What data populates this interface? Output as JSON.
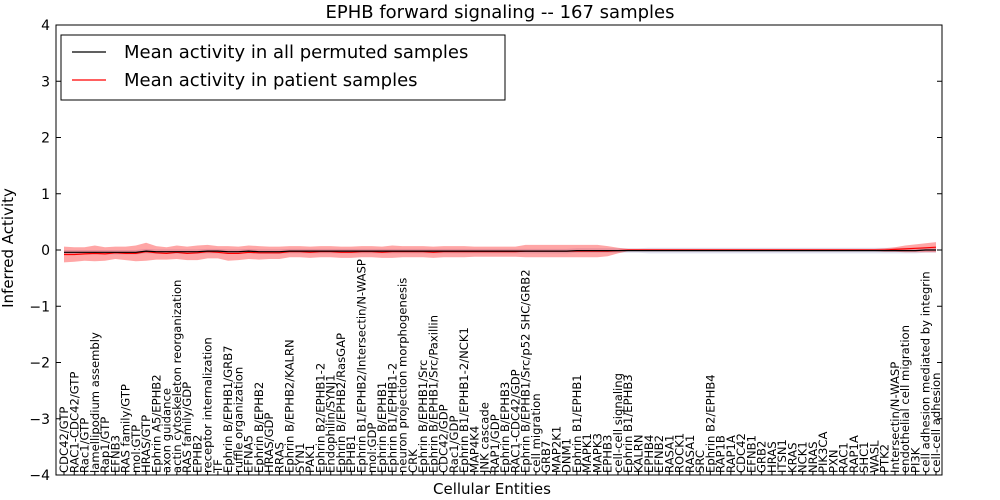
{
  "chart_data": {
    "type": "line",
    "title": "EPHB forward signaling -- 167 samples",
    "xlabel": "Cellular Entities",
    "ylabel": "Inferred Activity",
    "ylim": [
      -4,
      4
    ],
    "yticks": [
      -4,
      -3,
      -2,
      -1,
      0,
      1,
      2,
      3,
      4
    ],
    "grid": false,
    "legend_position": "top-left",
    "categories": [
      "CDC42/GTP",
      "RAC1-CDC42/GTP",
      "Rac1/GTP",
      "lamellipodium assembly",
      "Rap1/GTP",
      "EFNB3",
      "RAS family/GTP",
      "mol:GTP",
      "HRAS/GTP",
      "Ephrin A5/EPHB2",
      "axon guidance",
      "actin cytoskeleton reorganization",
      "RAS family/GDP",
      "EPHB2",
      "receptor internalization",
      "TF",
      "Ephrin B/EPHB1/GRB7",
      "ruffle organization",
      "EFNA5",
      "Ephrin B/EPHB2",
      "HRAS/GDP",
      "RRAS",
      "Ephrin B/EPHB2/KALRN",
      "SYN1",
      "PAK1",
      "Ephrin B2/EPHB1-2",
      "Endophilin/SYNJ1",
      "Ephrin B/EPHB2/RasGAP",
      "EPHB1",
      "Ephrin B1/EPHB2/Intersectin/N-WASP",
      "mol:GDP",
      "Ephrin B/EPHB1",
      "Ephrin B1/EPHB1-2",
      "neuron projection morphogenesis",
      "CRK",
      "Ephrin B/EPHB1/Src",
      "Ephrin B/EPHB1/Src/Paxillin",
      "CDC42/GDP",
      "Rac1/GDP",
      "Ephrin B1/EPHB1-2/NCK1",
      "MAP4K4",
      "JNK cascade",
      "RAP1/GDP",
      "Ephrin B/EPHB3",
      "RAC1-CDC42/GDP",
      "Ephrin B/EPHB1/Src/p52 SHC/GRB2",
      "cell migration",
      "GRB7",
      "MAP2K1",
      "DNM1",
      "Ephrin B1/EPHB1",
      "MAPK1",
      "MAPK3",
      "EPHB3",
      "cell-cell signaling",
      "Ephrin B1/EPHB3",
      "KALRN",
      "EPHB4",
      "EFNB2",
      "RASA1",
      "ROCK1",
      "RASA1",
      "SRC",
      "Ephrin B2/EPHB4",
      "RAP1B",
      "RAP1A",
      "CDC42",
      "EFNB1",
      "GRB2",
      "HRAS",
      "ITSN1",
      "KRAS",
      "NCK1",
      "NRAS",
      "PIK3CA",
      "PXN",
      "RAC1",
      "RAP1A",
      "SHC1",
      "WASL",
      "PTK2",
      "Intersectin/N-WASP",
      "endothelial cell migration",
      "PI3K",
      "cell adhesion mediated by integrin",
      "cell-cell adhesion"
    ],
    "series": [
      {
        "name": "Mean activity in all permuted samples",
        "color": "#000000",
        "values": [
          -0.04,
          -0.04,
          -0.04,
          -0.04,
          -0.04,
          -0.04,
          -0.04,
          -0.04,
          -0.02,
          -0.03,
          -0.03,
          -0.03,
          -0.03,
          -0.03,
          -0.02,
          -0.02,
          -0.03,
          -0.03,
          -0.02,
          -0.03,
          -0.03,
          -0.03,
          -0.02,
          -0.02,
          -0.02,
          -0.02,
          -0.02,
          -0.02,
          -0.02,
          -0.02,
          -0.02,
          -0.02,
          -0.02,
          -0.02,
          -0.02,
          -0.02,
          -0.02,
          -0.02,
          -0.02,
          -0.02,
          -0.02,
          -0.02,
          -0.02,
          -0.02,
          -0.02,
          -0.02,
          -0.02,
          -0.02,
          -0.02,
          -0.02,
          -0.01,
          -0.01,
          -0.01,
          -0.01,
          -0.01,
          -0.01,
          -0.01,
          -0.01,
          -0.01,
          -0.01,
          -0.01,
          -0.01,
          -0.01,
          -0.01,
          -0.01,
          -0.01,
          -0.01,
          -0.01,
          -0.01,
          -0.01,
          -0.01,
          -0.01,
          -0.01,
          -0.01,
          -0.01,
          -0.01,
          -0.01,
          -0.01,
          -0.01,
          -0.01,
          -0.01,
          -0.01,
          -0.01,
          -0.01,
          0.0,
          0.0
        ]
      },
      {
        "name": "Mean activity in patient samples",
        "color": "#ff0000",
        "values": [
          -0.08,
          -0.08,
          -0.07,
          -0.06,
          -0.07,
          -0.05,
          -0.06,
          -0.06,
          -0.03,
          -0.05,
          -0.06,
          -0.04,
          -0.06,
          -0.05,
          -0.03,
          -0.04,
          -0.06,
          -0.06,
          -0.04,
          -0.05,
          -0.05,
          -0.05,
          -0.03,
          -0.03,
          -0.04,
          -0.03,
          -0.03,
          -0.04,
          -0.04,
          -0.03,
          -0.03,
          -0.04,
          -0.03,
          -0.03,
          -0.03,
          -0.03,
          -0.04,
          -0.03,
          -0.03,
          -0.03,
          -0.03,
          -0.03,
          -0.03,
          -0.03,
          -0.03,
          -0.02,
          -0.02,
          -0.02,
          -0.02,
          -0.02,
          -0.02,
          -0.02,
          -0.02,
          -0.02,
          -0.01,
          0.0,
          0.0,
          0.0,
          0.0,
          0.0,
          0.0,
          0.0,
          0.0,
          0.0,
          0.0,
          0.0,
          0.0,
          0.0,
          0.0,
          0.0,
          0.0,
          0.0,
          0.0,
          0.0,
          0.0,
          0.0,
          0.0,
          0.0,
          0.0,
          0.0,
          0.0,
          0.01,
          0.02,
          0.03,
          0.04,
          0.05
        ]
      }
    ],
    "bands": [
      {
        "series": "Mean activity in patient samples",
        "color": "#ff0000",
        "half_width": [
          0.14,
          0.13,
          0.12,
          0.14,
          0.12,
          0.11,
          0.12,
          0.14,
          0.16,
          0.12,
          0.11,
          0.12,
          0.12,
          0.13,
          0.12,
          0.11,
          0.13,
          0.12,
          0.12,
          0.12,
          0.11,
          0.11,
          0.1,
          0.1,
          0.1,
          0.1,
          0.1,
          0.1,
          0.1,
          0.1,
          0.1,
          0.1,
          0.11,
          0.1,
          0.1,
          0.1,
          0.1,
          0.1,
          0.1,
          0.1,
          0.09,
          0.09,
          0.09,
          0.09,
          0.09,
          0.11,
          0.11,
          0.11,
          0.11,
          0.11,
          0.11,
          0.11,
          0.11,
          0.09,
          0.05,
          0.02,
          0.02,
          0.02,
          0.02,
          0.02,
          0.02,
          0.02,
          0.02,
          0.02,
          0.02,
          0.02,
          0.02,
          0.02,
          0.02,
          0.02,
          0.02,
          0.02,
          0.02,
          0.02,
          0.02,
          0.02,
          0.02,
          0.02,
          0.02,
          0.02,
          0.03,
          0.04,
          0.06,
          0.07,
          0.08,
          0.09
        ]
      },
      {
        "series": "Mean activity in all permuted samples",
        "color": "#9999cc",
        "half_width": [
          0.04,
          0.04,
          0.04,
          0.04,
          0.04,
          0.04,
          0.04,
          0.04,
          0.04,
          0.04,
          0.04,
          0.04,
          0.04,
          0.04,
          0.04,
          0.04,
          0.04,
          0.04,
          0.04,
          0.04,
          0.04,
          0.04,
          0.04,
          0.04,
          0.04,
          0.04,
          0.04,
          0.04,
          0.04,
          0.04,
          0.04,
          0.04,
          0.04,
          0.04,
          0.04,
          0.04,
          0.04,
          0.04,
          0.04,
          0.04,
          0.04,
          0.04,
          0.04,
          0.04,
          0.04,
          0.04,
          0.04,
          0.04,
          0.04,
          0.04,
          0.04,
          0.04,
          0.04,
          0.04,
          0.04,
          0.04,
          0.04,
          0.05,
          0.05,
          0.05,
          0.05,
          0.05,
          0.05,
          0.05,
          0.05,
          0.05,
          0.05,
          0.05,
          0.05,
          0.05,
          0.05,
          0.05,
          0.05,
          0.05,
          0.05,
          0.05,
          0.05,
          0.05,
          0.05,
          0.05,
          0.05,
          0.05,
          0.05,
          0.05,
          0.05,
          0.05
        ]
      }
    ]
  }
}
